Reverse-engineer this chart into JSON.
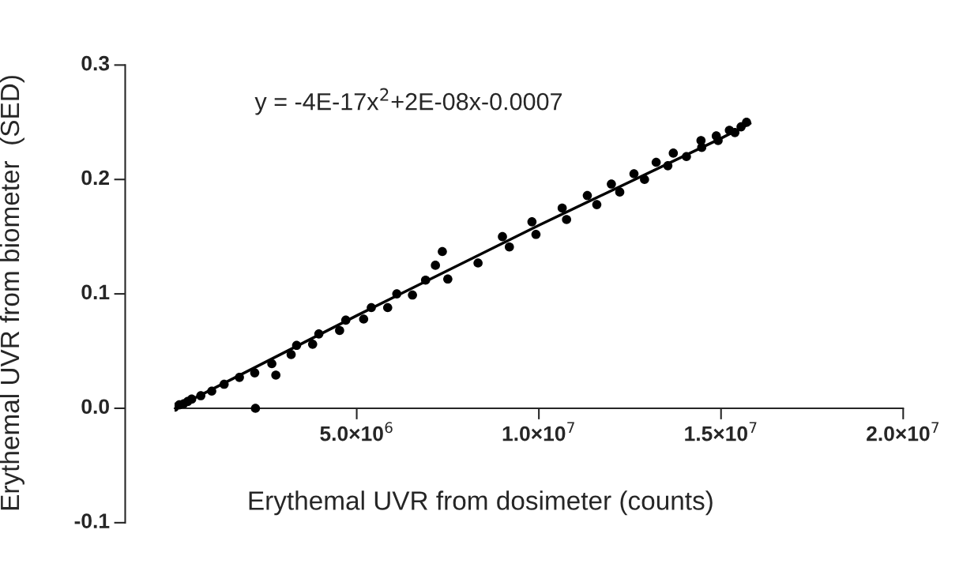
{
  "chart_data": {
    "type": "scatter",
    "xlabel": "Erythemal UVR from dosimeter (counts)",
    "ylabel": "Erythemal UVR from biometer  (SED)",
    "annotations": [
      "y = -4E-17x$^{2}$+2E-08x-0.0007"
    ],
    "xlim": [
      0,
      20000000
    ],
    "ylim": [
      -0.1,
      0.3
    ],
    "xticks": [
      {
        "value": 5000000,
        "label": "5.0×10$^{6}$"
      },
      {
        "value": 10000000,
        "label": "1.0×10$^{7}$"
      },
      {
        "value": 15000000,
        "label": "1.5×10$^{7}$"
      },
      {
        "value": 20000000,
        "label": "2.0×10$^{7}$"
      }
    ],
    "yticks": [
      {
        "value": -0.1,
        "label": "-0.1"
      },
      {
        "value": 0.0,
        "label": "0.0"
      },
      {
        "value": 0.1,
        "label": "0.1"
      },
      {
        "value": 0.2,
        "label": "0.2"
      },
      {
        "value": 0.3,
        "label": "0.3"
      }
    ],
    "grid": false,
    "legend": false,
    "marker": "circle",
    "series": [
      {
        "type": "scatter",
        "color": "#000000",
        "x": [
          0,
          130000,
          250000,
          360000,
          470000,
          720000,
          1020000,
          1360000,
          1780000,
          2200000,
          2220000,
          2670000,
          2780000,
          3200000,
          3350000,
          3790000,
          3960000,
          4530000,
          4700000,
          5190000,
          5400000,
          5850000,
          6100000,
          6530000,
          6890000,
          7160000,
          7350000,
          7500000,
          8330000,
          9000000,
          9190000,
          9810000,
          9920000,
          10640000,
          10760000,
          11330000,
          11590000,
          11990000,
          12220000,
          12610000,
          12900000,
          13220000,
          13540000,
          13690000,
          14050000,
          14450000,
          14470000,
          14870000,
          14920000,
          15230000,
          15380000,
          15550000,
          15700000
        ],
        "values": [
          0.001,
          0.003,
          0.004,
          0.006,
          0.008,
          0.011,
          0.015,
          0.021,
          0.027,
          0.031,
          0.0,
          0.039,
          0.029,
          0.047,
          0.055,
          0.056,
          0.065,
          0.068,
          0.077,
          0.078,
          0.088,
          0.088,
          0.1,
          0.099,
          0.112,
          0.125,
          0.137,
          0.113,
          0.127,
          0.15,
          0.141,
          0.163,
          0.152,
          0.175,
          0.165,
          0.186,
          0.178,
          0.196,
          0.189,
          0.205,
          0.2,
          0.215,
          0.212,
          0.223,
          0.22,
          0.234,
          0.228,
          0.238,
          0.234,
          0.243,
          0.241,
          0.246,
          0.25
        ]
      },
      {
        "type": "line",
        "color": "#000000",
        "marker": "none",
        "line_style": "solid",
        "x": [
          0,
          5000000,
          10000000,
          15000000,
          15800000
        ],
        "values": [
          0.0,
          0.081,
          0.16,
          0.236,
          0.249
        ]
      }
    ]
  }
}
